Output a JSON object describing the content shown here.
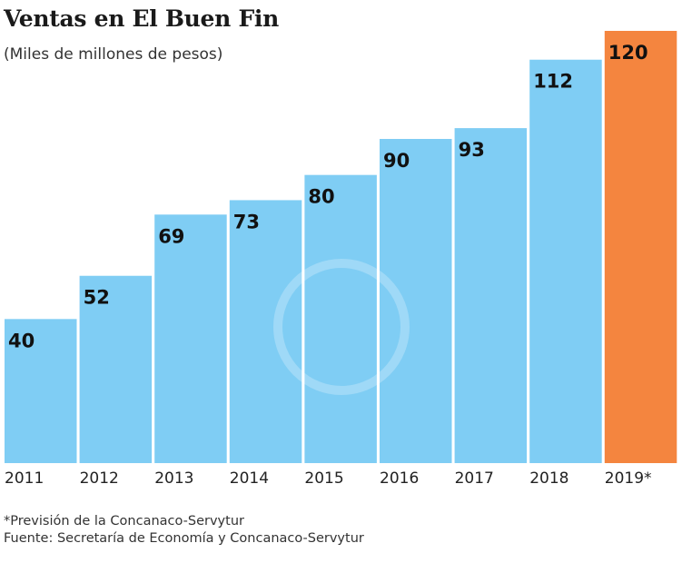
{
  "chart_data": {
    "type": "bar",
    "title": "Ventas en El Buen Fin",
    "subtitle": "(Miles de millones de pesos)",
    "categories": [
      "2011",
      "2012",
      "2013",
      "2014",
      "2015",
      "2016",
      "2017",
      "2018",
      "2019*"
    ],
    "values": [
      40,
      52,
      69,
      73,
      80,
      90,
      93,
      112,
      120
    ],
    "colors": {
      "actual": "#7fcdf4",
      "forecast": "#f4853f"
    },
    "highlight_index": 8,
    "ylim": [
      0,
      120
    ],
    "grid": false,
    "data_labels": true
  },
  "notes": {
    "forecast": "*Previsión de la Concanaco-Servytur",
    "source": "Fuente: Secretaría de Economía y Concanaco-Servytur"
  }
}
